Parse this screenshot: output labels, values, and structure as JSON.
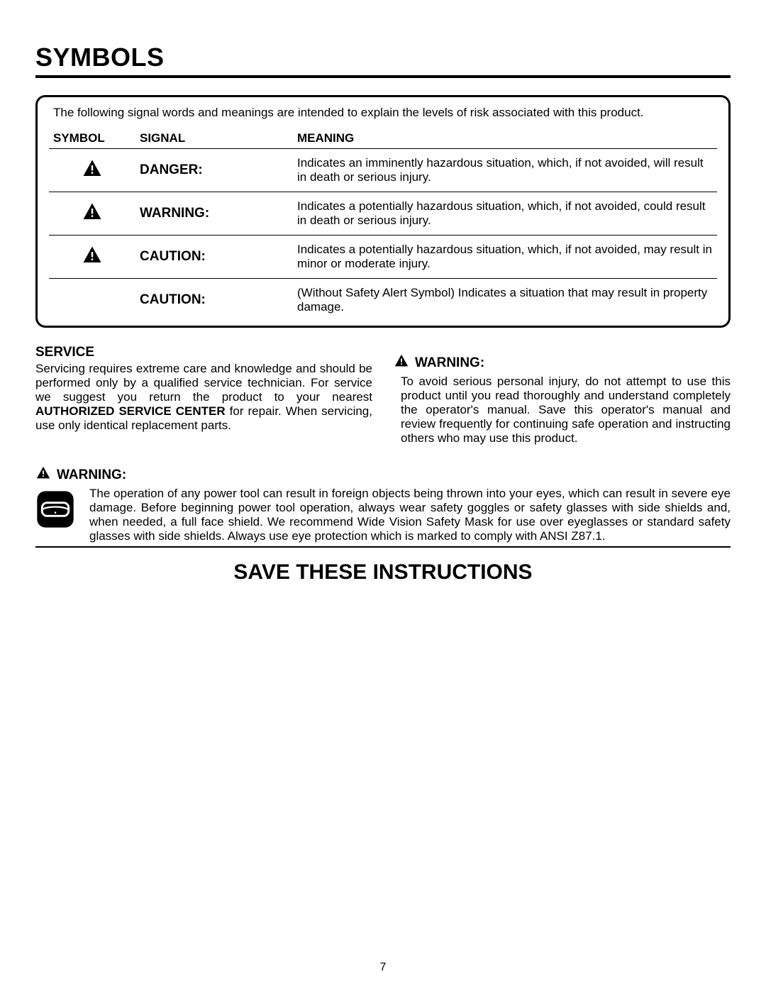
{
  "title": "SYMBOLS",
  "intro": "The following signal words and meanings are intended to explain the levels of risk associated with this product.",
  "table": {
    "headers": {
      "symbol": "SYMBOL",
      "signal": "SIGNAL",
      "meaning": "MEANING"
    },
    "rows": [
      {
        "icon": true,
        "signal": "DANGER:",
        "meaning": "Indicates an imminently hazardous situation, which, if not avoided, will result in death or serious injury."
      },
      {
        "icon": true,
        "signal": "WARNING:",
        "meaning": "Indicates a potentially hazardous situation, which, if not avoided, could result in death or serious injury."
      },
      {
        "icon": true,
        "signal": "CAUTION:",
        "meaning": "Indicates a potentially hazardous situation, which, if not avoided, may result in minor or moderate injury."
      },
      {
        "icon": false,
        "signal": "CAUTION:",
        "meaning": "(Without Safety Alert Symbol) Indicates a situation that may result in property damage."
      }
    ]
  },
  "service": {
    "heading": "SERVICE",
    "text_pre": "Servicing requires extreme care and knowledge and should be performed only by a qualified service technician. For service we suggest you return the product to your nearest ",
    "bold": "AUTHORIZED SERVICE CENTER",
    "text_post": " for repair. When servicing, use only identical replacement parts."
  },
  "warning_right": {
    "heading": "WARNING:",
    "text": "To avoid serious personal injury, do not attempt to use this product until you read thoroughly and understand completely the operator's manual. Save this operator's manual and review frequently for continuing safe operation and instructing others who may use this product."
  },
  "warning_bottom": {
    "heading": "WARNING:",
    "text": "The operation of any power tool can result in foreign objects being thrown into your eyes, which can result in severe eye damage. Before beginning power tool operation, always wear safety goggles or safety glasses with side shields and, when needed, a full face shield. We recommend Wide Vision Safety Mask for use over eyeglasses or standard safety glasses with side shields. Always use eye protection which is marked to comply with ANSI Z87.1."
  },
  "save": "SAVE THESE INSTRUCTIONS",
  "page_number": "7",
  "icons": {
    "alert_svg_size": 30,
    "alert_color": "#000000",
    "goggle_size": 56
  }
}
